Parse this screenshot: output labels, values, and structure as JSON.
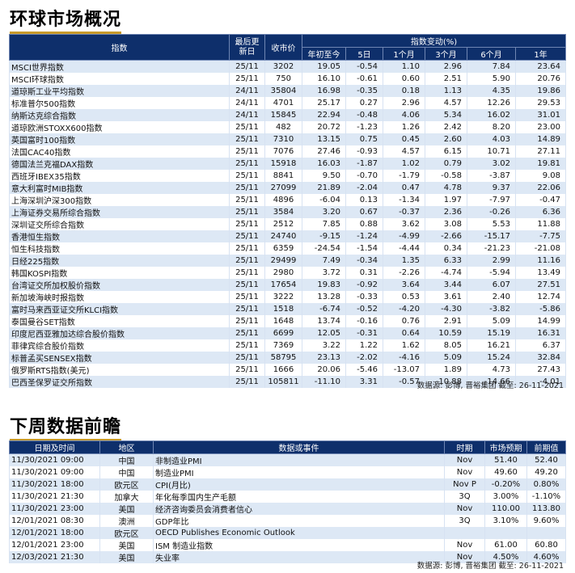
{
  "market": {
    "title": "环球市场概况",
    "headers": {
      "index": "指数",
      "last_update": "最后更新日",
      "close": "收市价",
      "change": "指数变动(%)",
      "ytd": "年初至今",
      "d5": "5日",
      "m1": "1个月",
      "m3": "3个月",
      "m6": "6个月",
      "y1": "1年"
    },
    "rows": [
      {
        "name": "MSCI世界指数",
        "date": "25/11",
        "close": "3202",
        "ytd": "19.05",
        "d5": "-0.54",
        "m1": "1.10",
        "m3": "2.96",
        "m6": "7.84",
        "y1": "23.64"
      },
      {
        "name": "MSCI环球指数",
        "date": "25/11",
        "close": "750",
        "ytd": "16.10",
        "d5": "-0.61",
        "m1": "0.60",
        "m3": "2.51",
        "m6": "5.90",
        "y1": "20.76"
      },
      {
        "name": "道琼斯工业平均指数",
        "date": "24/11",
        "close": "35804",
        "ytd": "16.98",
        "d5": "-0.35",
        "m1": "0.18",
        "m3": "1.13",
        "m6": "4.35",
        "y1": "19.86"
      },
      {
        "name": "标准普尔500指数",
        "date": "24/11",
        "close": "4701",
        "ytd": "25.17",
        "d5": "0.27",
        "m1": "2.96",
        "m3": "4.57",
        "m6": "12.26",
        "y1": "29.53"
      },
      {
        "name": "纳斯达克综合指数",
        "date": "24/11",
        "close": "15845",
        "ytd": "22.94",
        "d5": "-0.48",
        "m1": "4.06",
        "m3": "5.34",
        "m6": "16.02",
        "y1": "31.01"
      },
      {
        "name": "道琼欧洲STOXX600指数",
        "date": "25/11",
        "close": "482",
        "ytd": "20.72",
        "d5": "-1.23",
        "m1": "1.26",
        "m3": "2.42",
        "m6": "8.20",
        "y1": "23.00"
      },
      {
        "name": "英国富时100指数",
        "date": "25/11",
        "close": "7310",
        "ytd": "13.15",
        "d5": "0.75",
        "m1": "0.45",
        "m3": "2.60",
        "m6": "4.03",
        "y1": "14.89"
      },
      {
        "name": "法国CAC40指数",
        "date": "25/11",
        "close": "7076",
        "ytd": "27.46",
        "d5": "-0.93",
        "m1": "4.57",
        "m3": "6.15",
        "m6": "10.71",
        "y1": "27.11"
      },
      {
        "name": "德国法兰克福DAX指数",
        "date": "25/11",
        "close": "15918",
        "ytd": "16.03",
        "d5": "-1.87",
        "m1": "1.02",
        "m3": "0.79",
        "m6": "3.02",
        "y1": "19.81"
      },
      {
        "name": "西班牙IBEX35指数",
        "date": "25/11",
        "close": "8841",
        "ytd": "9.50",
        "d5": "-0.70",
        "m1": "-1.79",
        "m3": "-0.58",
        "m6": "-3.87",
        "y1": "9.08"
      },
      {
        "name": "意大利富时MIB指数",
        "date": "25/11",
        "close": "27099",
        "ytd": "21.89",
        "d5": "-2.04",
        "m1": "0.47",
        "m3": "4.78",
        "m6": "9.37",
        "y1": "22.06"
      },
      {
        "name": "上海深圳沪深300指数",
        "date": "25/11",
        "close": "4896",
        "ytd": "-6.04",
        "d5": "0.13",
        "m1": "-1.34",
        "m3": "1.97",
        "m6": "-7.97",
        "y1": "-0.47"
      },
      {
        "name": "上海证券交易所综合指数",
        "date": "25/11",
        "close": "3584",
        "ytd": "3.20",
        "d5": "0.67",
        "m1": "-0.37",
        "m3": "2.36",
        "m6": "-0.26",
        "y1": "6.36"
      },
      {
        "name": "深圳证交所综合指数",
        "date": "25/11",
        "close": "2512",
        "ytd": "7.85",
        "d5": "0.88",
        "m1": "3.62",
        "m3": "3.08",
        "m6": "5.53",
        "y1": "11.88"
      },
      {
        "name": "香港恒生指数",
        "date": "25/11",
        "close": "24740",
        "ytd": "-9.15",
        "d5": "-1.24",
        "m1": "-4.99",
        "m3": "-2.66",
        "m6": "-15.17",
        "y1": "-7.75"
      },
      {
        "name": "恒生科技指数",
        "date": "25/11",
        "close": "6359",
        "ytd": "-24.54",
        "d5": "-1.54",
        "m1": "-4.44",
        "m3": "0.34",
        "m6": "-21.23",
        "y1": "-21.08"
      },
      {
        "name": "日经225指数",
        "date": "25/11",
        "close": "29499",
        "ytd": "7.49",
        "d5": "-0.34",
        "m1": "1.35",
        "m3": "6.33",
        "m6": "2.99",
        "y1": "11.16"
      },
      {
        "name": "韩国KOSPI指数",
        "date": "25/11",
        "close": "2980",
        "ytd": "3.72",
        "d5": "0.31",
        "m1": "-2.26",
        "m3": "-4.74",
        "m6": "-5.94",
        "y1": "13.49"
      },
      {
        "name": "台湾证交所加权股价指数",
        "date": "25/11",
        "close": "17654",
        "ytd": "19.83",
        "d5": "-0.92",
        "m1": "3.64",
        "m3": "3.44",
        "m6": "6.07",
        "y1": "27.51"
      },
      {
        "name": "新加坡海峡时报指数",
        "date": "25/11",
        "close": "3222",
        "ytd": "13.28",
        "d5": "-0.33",
        "m1": "0.53",
        "m3": "3.61",
        "m6": "2.40",
        "y1": "12.74"
      },
      {
        "name": "富时马来西亚证交所KLCI指数",
        "date": "25/11",
        "close": "1518",
        "ytd": "-6.74",
        "d5": "-0.52",
        "m1": "-4.20",
        "m3": "-4.30",
        "m6": "-3.82",
        "y1": "-5.86"
      },
      {
        "name": "泰国曼谷SET指数",
        "date": "25/11",
        "close": "1648",
        "ytd": "13.74",
        "d5": "-0.16",
        "m1": "0.76",
        "m3": "2.91",
        "m6": "5.09",
        "y1": "14.99"
      },
      {
        "name": "印度尼西亚雅加达综合股价指数",
        "date": "25/11",
        "close": "6699",
        "ytd": "12.05",
        "d5": "-0.31",
        "m1": "0.64",
        "m3": "10.59",
        "m6": "15.19",
        "y1": "16.31"
      },
      {
        "name": "菲律宾综合股价指数",
        "date": "25/11",
        "close": "7369",
        "ytd": "3.22",
        "d5": "1.22",
        "m1": "1.62",
        "m3": "8.05",
        "m6": "16.21",
        "y1": "6.37"
      },
      {
        "name": "标普孟买SENSEX指数",
        "date": "25/11",
        "close": "58795",
        "ytd": "23.13",
        "d5": "-2.02",
        "m1": "-4.16",
        "m3": "5.09",
        "m6": "15.24",
        "y1": "32.84"
      },
      {
        "name": "俄罗斯RTS指数(美元)",
        "date": "25/11",
        "close": "1666",
        "ytd": "20.06",
        "d5": "-5.46",
        "m1": "-13.07",
        "m3": "1.89",
        "m6": "4.73",
        "y1": "27.43"
      },
      {
        "name": "巴西圣保罗证交所指数",
        "date": "25/11",
        "close": "105811",
        "ytd": "-11.10",
        "d5": "3.31",
        "m1": "-0.57",
        "m3": "-10.88",
        "m6": "-14.66",
        "y1": "-4.01"
      }
    ],
    "source": "数据源: 彭博, 晋裕集团 截至: 26-11-2021"
  },
  "calendar": {
    "title": "下周数据前瞻",
    "headers": {
      "datetime": "日期及时间",
      "region": "地区",
      "event": "数据或事件",
      "period": "时期",
      "forecast": "市场预期",
      "previous": "前期值"
    },
    "rows": [
      {
        "datetime": "11/30/2021 09:00",
        "region": "中国",
        "event": "非制造业PMI",
        "period": "Nov",
        "forecast": "51.40",
        "previous": "52.40"
      },
      {
        "datetime": "11/30/2021 09:00",
        "region": "中国",
        "event": "制造业PMI",
        "period": "Nov",
        "forecast": "49.60",
        "previous": "49.20"
      },
      {
        "datetime": "11/30/2021 18:00",
        "region": "欧元区",
        "event": "CPI(月比)",
        "period": "Nov P",
        "forecast": "-0.20%",
        "previous": "0.80%"
      },
      {
        "datetime": "11/30/2021 21:30",
        "region": "加拿大",
        "event": "年化每季国内生产毛额",
        "period": "3Q",
        "forecast": "3.00%",
        "previous": "-1.10%"
      },
      {
        "datetime": "11/30/2021 23:00",
        "region": "美国",
        "event": "经济咨询委员会消费者信心",
        "period": "Nov",
        "forecast": "110.00",
        "previous": "113.80"
      },
      {
        "datetime": "12/01/2021 08:30",
        "region": "澳洲",
        "event": "GDP年比",
        "period": "3Q",
        "forecast": "3.10%",
        "previous": "9.60%"
      },
      {
        "datetime": "12/01/2021 18:00",
        "region": "欧元区",
        "event": "OECD Publishes Economic Outlook",
        "period": "",
        "forecast": "",
        "previous": ""
      },
      {
        "datetime": "12/01/2021 23:00",
        "region": "美国",
        "event": "ISM 制造业指数",
        "period": "Nov",
        "forecast": "61.00",
        "previous": "60.80"
      },
      {
        "datetime": "12/03/2021 21:30",
        "region": "美国",
        "event": "失业率",
        "period": "Nov",
        "forecast": "4.50%",
        "previous": "4.60%"
      }
    ],
    "source": "数据源: 彭博, 晋裕集团 截至: 26-11-2021"
  }
}
